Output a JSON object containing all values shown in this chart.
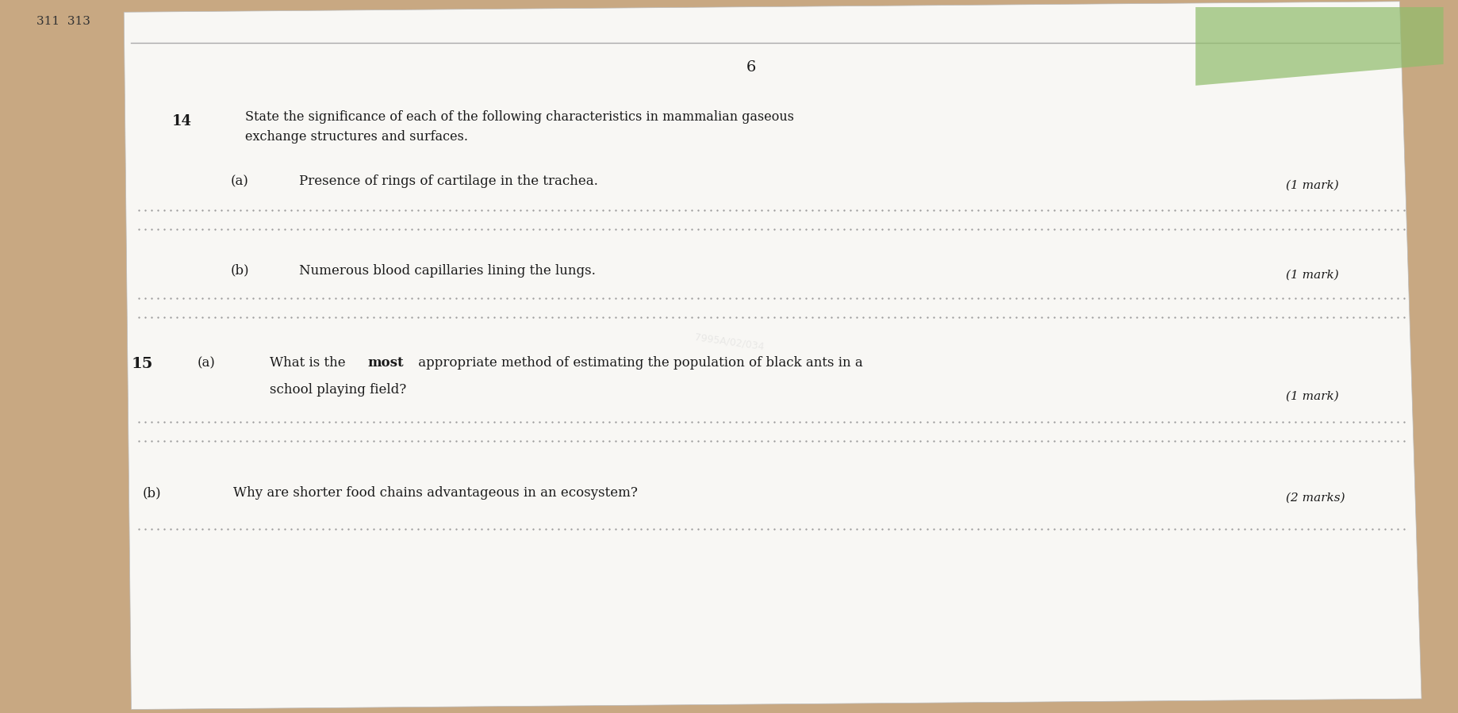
{
  "bg_color": "#c8a882",
  "page_color": "#f8f7f4",
  "title_number": "6",
  "q14_number": "14",
  "q14_stem": "State the significance of each of the following characteristics in mammalian gaseous\nexchange structures and surfaces.",
  "q14a_label": "(a)",
  "q14a_text": "Presence of rings of cartilage in the trachea.",
  "q14a_mark": "(1 mark)",
  "q14b_label": "(b)",
  "q14b_text": "Numerous blood capillaries lining the lungs.",
  "q14b_mark": "(1 mark)",
  "q15_number": "15",
  "q15a_label": "(a)",
  "q15a_text1": "What is the ",
  "q15a_bold": "most",
  "q15a_text2": " appropriate method of estimating the population of black ants in a",
  "q15a_line2": "school playing field?",
  "q15a_mark": "(1 mark)",
  "q15b_label": "(b)",
  "q15b_text": "Why are shorter food chains advantageous in an ecosystem?",
  "q15b_mark": "(2 marks)",
  "corner_top_left": "311  313",
  "watermark": "7995A/02/034",
  "font_color": "#1a1a1a",
  "dotted_line_color": "#999999",
  "green_patch_color": "#8fbc6a"
}
